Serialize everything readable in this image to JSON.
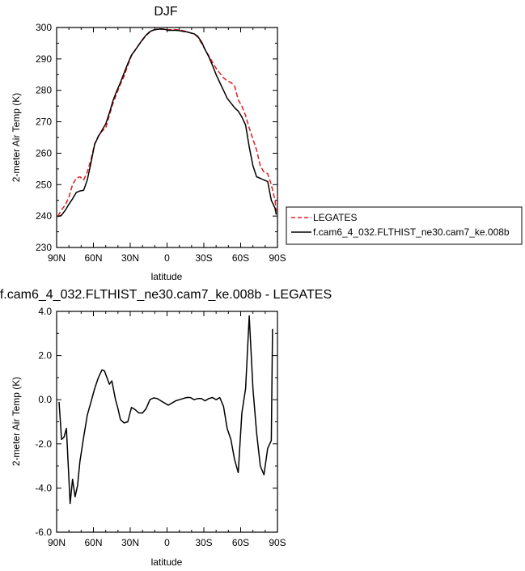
{
  "colors": {
    "model": "#000000",
    "obs": "#e31a1c"
  },
  "chart_data": [
    {
      "type": "line",
      "title": "DJF",
      "xlabel": "latitude",
      "ylabel": "2-meter Air Temp (K)",
      "xlim": [
        90,
        -90
      ],
      "ylim": [
        230,
        300
      ],
      "x_ticks": [
        90,
        60,
        30,
        0,
        -30,
        -60,
        -90
      ],
      "x_tick_labels": [
        "90N",
        "60N",
        "30N",
        "0",
        "30S",
        "60S",
        "90S"
      ],
      "y_ticks": [
        230,
        240,
        250,
        260,
        270,
        280,
        290,
        300
      ],
      "y_tick_labels": [
        "230",
        "240",
        "250",
        "260",
        "270",
        "280",
        "290",
        "300"
      ],
      "legend_position": "right",
      "series": [
        {
          "name": "LEGATES",
          "style": "dashed",
          "color": "#e31a1c",
          "x": [
            89,
            86,
            83,
            80,
            77,
            74,
            71,
            68,
            65,
            62,
            59,
            56,
            53,
            50,
            47,
            44,
            41,
            38,
            35,
            32,
            29,
            26,
            23,
            20,
            17,
            14,
            11,
            8,
            5,
            2,
            -1,
            -4,
            -7,
            -10,
            -13,
            -16,
            -19,
            -22,
            -25,
            -28,
            -31,
            -34,
            -37,
            -40,
            -43,
            -46,
            -49,
            -52,
            -55,
            -58,
            -61,
            -64,
            -67,
            -70,
            -73,
            -76,
            -79,
            -82,
            -85,
            -88,
            -89
          ],
          "y": [
            240.0,
            242.0,
            243.5,
            246.0,
            250.0,
            252.0,
            252.5,
            251.5,
            254.0,
            258.0,
            263.0,
            265.5,
            267.0,
            268.0,
            272.0,
            276.0,
            279.0,
            282.0,
            284.5,
            288.0,
            291.0,
            292.8,
            294.5,
            296.0,
            297.5,
            298.5,
            299.2,
            299.5,
            299.5,
            299.4,
            299.3,
            299.3,
            299.3,
            299.2,
            299.0,
            298.7,
            298.3,
            298.0,
            297.0,
            295.0,
            293.0,
            291.0,
            289.0,
            287.0,
            285.5,
            284.0,
            283.0,
            282.5,
            281.5,
            277.0,
            275.0,
            272.0,
            268.0,
            264.5,
            261.0,
            256.0,
            254.0,
            253.5,
            250.0,
            245.0,
            241.5
          ]
        },
        {
          "name": "f.cam6_4_032.FLTHIST_ne30.cam7_ke.008b",
          "style": "solid",
          "color": "#000000",
          "x": [
            89,
            86,
            83,
            80,
            77,
            74,
            71,
            68,
            65,
            62,
            59,
            56,
            53,
            50,
            47,
            44,
            41,
            38,
            35,
            32,
            29,
            26,
            23,
            20,
            17,
            14,
            11,
            8,
            5,
            2,
            -1,
            -4,
            -7,
            -10,
            -13,
            -16,
            -19,
            -22,
            -25,
            -28,
            -31,
            -34,
            -37,
            -40,
            -43,
            -46,
            -49,
            -52,
            -55,
            -58,
            -61,
            -64,
            -67,
            -70,
            -73,
            -76,
            -79,
            -82,
            -85,
            -88,
            -89
          ],
          "y": [
            239.8,
            240.3,
            241.8,
            243.8,
            245.5,
            247.5,
            248.0,
            248.2,
            251.5,
            257.0,
            262.8,
            265.3,
            267.3,
            269.3,
            272.8,
            276.8,
            279.8,
            282.5,
            285.5,
            288.5,
            291.2,
            292.8,
            294.5,
            296.2,
            297.6,
            298.7,
            299.2,
            299.4,
            299.5,
            299.4,
            299.1,
            299.1,
            299.1,
            299.0,
            298.8,
            298.6,
            298.3,
            298.0,
            297.2,
            295.5,
            293.0,
            290.7,
            288.0,
            285.0,
            282.5,
            280.0,
            277.5,
            276.0,
            274.5,
            273.4,
            271.5,
            269.0,
            262.0,
            256.0,
            252.5,
            252.0,
            251.5,
            251.0,
            245.0,
            242.5,
            240.5
          ]
        }
      ]
    },
    {
      "type": "line",
      "title": "f.cam6_4_032.FLTHIST_ne30.cam7_ke.008b - LEGATES",
      "xlabel": "latitude",
      "ylabel": "2-meter Air Temp (K)",
      "xlim": [
        90,
        -90
      ],
      "ylim": [
        -6,
        4
      ],
      "x_ticks": [
        90,
        60,
        30,
        0,
        -30,
        -60,
        -90
      ],
      "x_tick_labels": [
        "90N",
        "60N",
        "30N",
        "0",
        "30S",
        "60S",
        "90S"
      ],
      "y_ticks": [
        -6,
        -4,
        -2,
        0,
        2,
        4
      ],
      "y_tick_labels": [
        "-6.0",
        "-4.0",
        "-2.0",
        "0.0",
        "2.0",
        "4.0"
      ],
      "series": [
        {
          "style": "solid",
          "color": "#000000",
          "x": [
            88,
            86,
            84,
            82,
            79,
            77,
            75,
            73,
            71,
            68,
            65,
            62,
            59,
            56,
            53,
            51,
            49,
            47,
            45,
            42,
            40,
            38,
            35,
            32,
            29,
            26,
            23,
            20,
            17,
            14,
            11,
            8,
            5,
            2,
            -1,
            -4,
            -7,
            -10,
            -13,
            -16,
            -19,
            -22,
            -25,
            -28,
            -31,
            -34,
            -37,
            -40,
            -43,
            -46,
            -49,
            -52,
            -55,
            -58,
            -61,
            -64,
            -67,
            -70,
            -73,
            -76,
            -79,
            -82,
            -85,
            -86
          ],
          "y": [
            -0.1,
            -1.8,
            -1.7,
            -1.3,
            -4.7,
            -3.6,
            -4.4,
            -3.9,
            -2.8,
            -1.7,
            -0.7,
            -0.1,
            0.5,
            1.0,
            1.35,
            1.3,
            1.0,
            0.7,
            0.85,
            0.0,
            -0.4,
            -0.9,
            -1.05,
            -1.0,
            -0.35,
            -0.45,
            -0.6,
            -0.6,
            -0.4,
            0.0,
            0.08,
            0.05,
            -0.05,
            -0.15,
            -0.25,
            -0.15,
            -0.05,
            0.0,
            0.05,
            0.1,
            0.1,
            0.0,
            0.05,
            0.05,
            -0.05,
            0.05,
            0.1,
            0.0,
            0.1,
            -0.3,
            -1.3,
            -1.8,
            -2.7,
            -3.3,
            -0.6,
            0.5,
            3.8,
            0.5,
            -1.5,
            -3.0,
            -3.4,
            -2.2,
            -1.85,
            3.2
          ]
        }
      ]
    }
  ]
}
